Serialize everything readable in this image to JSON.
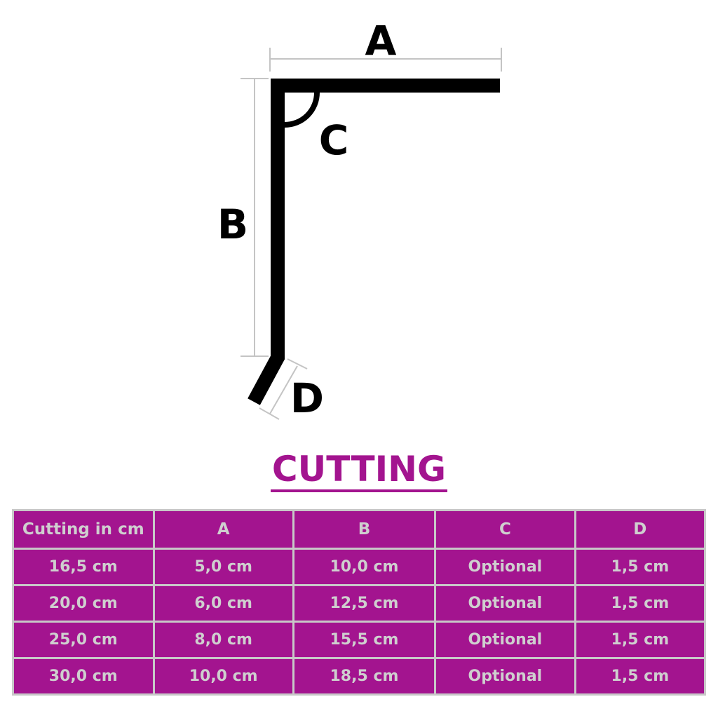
{
  "diagram": {
    "labels": {
      "a": "A",
      "b": "B",
      "c": "C",
      "d": "D"
    }
  },
  "title": "CUTTING",
  "colors": {
    "accent": "#a3148f",
    "table_text": "#cfcfcf",
    "border": "#c8c8c8"
  },
  "table": {
    "headers": [
      "Cutting in cm",
      "A",
      "B",
      "C",
      "D"
    ],
    "rows": [
      [
        "16,5 cm",
        "5,0 cm",
        "10,0 cm",
        "Optional",
        "1,5 cm"
      ],
      [
        "20,0 cm",
        "6,0 cm",
        "12,5 cm",
        "Optional",
        "1,5 cm"
      ],
      [
        "25,0 cm",
        "8,0 cm",
        "15,5 cm",
        "Optional",
        "1,5 cm"
      ],
      [
        "30,0 cm",
        "10,0 cm",
        "18,5 cm",
        "Optional",
        "1,5 cm"
      ]
    ]
  }
}
